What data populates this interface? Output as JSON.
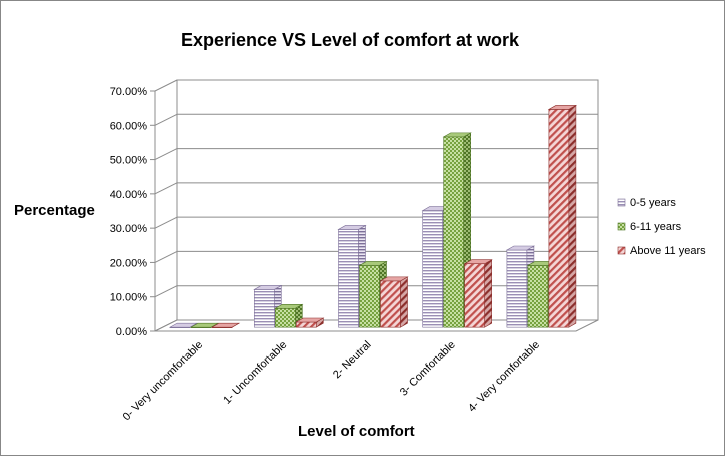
{
  "chart_data": {
    "type": "bar",
    "title": "Experience VS Level of  comfort at work",
    "xlabel": "Level of comfort",
    "ylabel": "Percentage",
    "ylim": [
      0,
      70
    ],
    "yticks": [
      "0.00%",
      "10.00%",
      "20.00%",
      "30.00%",
      "40.00%",
      "50.00%",
      "60.00%",
      "70.00%"
    ],
    "categories": [
      "0- Very uncomfortable",
      "1- Uncomfortable",
      "2- Neutral",
      "3- Comfortable",
      "4- Very comfortable"
    ],
    "series": [
      {
        "name": "0-5 years",
        "values": [
          0.0,
          11.0,
          28.5,
          34.0,
          22.5
        ]
      },
      {
        "name": "6-11 years",
        "values": [
          0.0,
          5.5,
          18.0,
          55.5,
          18.0
        ]
      },
      {
        "name": "Above 11 years",
        "values": [
          0.0,
          1.5,
          13.5,
          18.5,
          63.5
        ]
      }
    ],
    "grid": true,
    "legend": "right",
    "colors": [
      "#b3a6c9",
      "#77a23f",
      "#c0504d"
    ]
  }
}
